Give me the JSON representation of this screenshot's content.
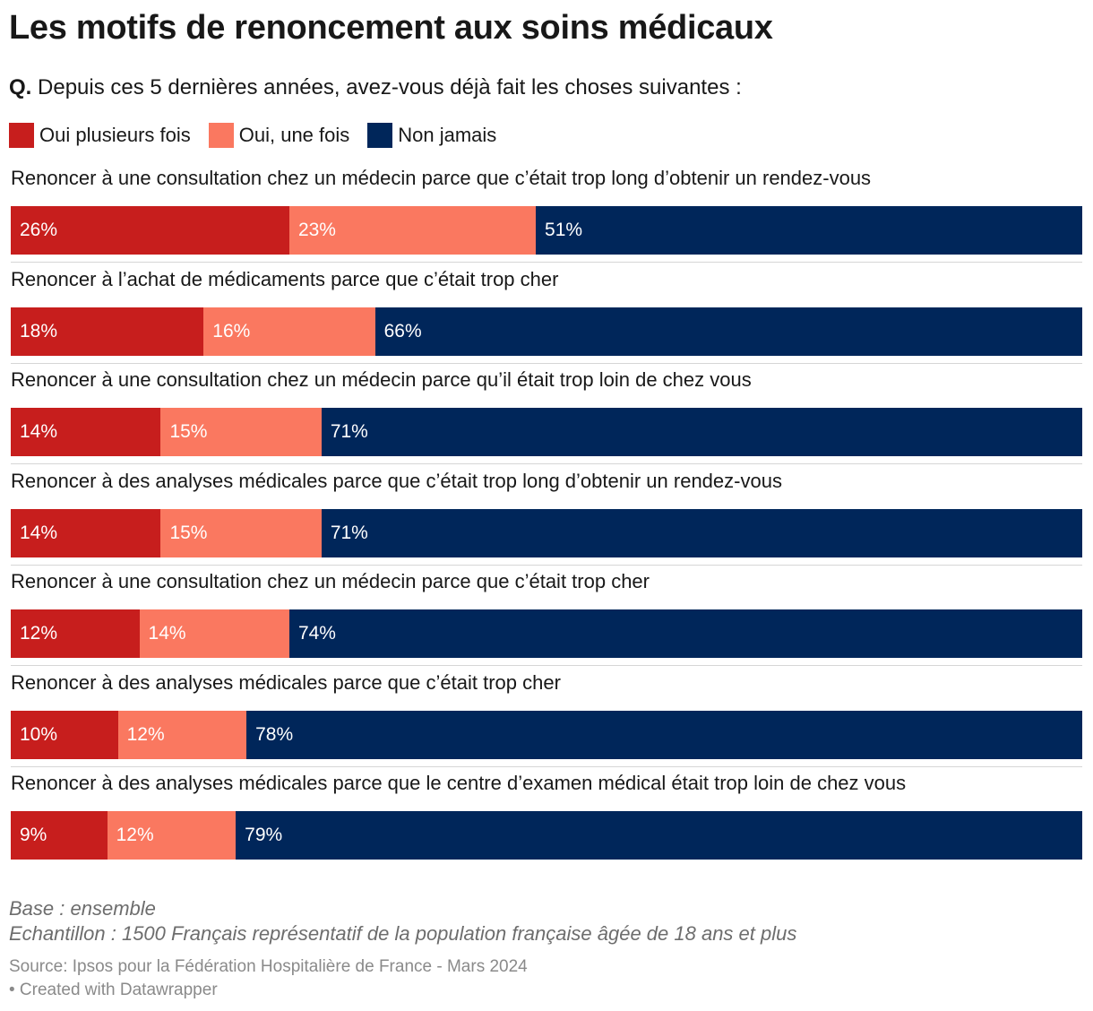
{
  "header": {
    "title": "Les motifs de renoncement aux soins médicaux",
    "subtitle_prefix": "Q.",
    "subtitle_text": "Depuis ces 5 dernières années, avez-vous déjà fait les choses suivantes :"
  },
  "colors": {
    "oui_plusieurs": "#c71e1d",
    "oui_une": "#fa7860",
    "non_jamais": "#00265a"
  },
  "chart_data": {
    "type": "bar",
    "orientation": "horizontal",
    "stacked": true,
    "unit": "%",
    "xlim": [
      0,
      100
    ],
    "legend_position": "top-left",
    "grid": false,
    "categories": [
      "Renoncer à une consultation chez un médecin parce que c’était trop long d’obtenir un rendez-vous",
      "Renoncer à l’achat de médicaments parce que c’était trop cher",
      "Renoncer à une consultation chez un médecin parce qu’il était trop loin de chez vous",
      "Renoncer à des analyses médicales parce que c’était trop long d’obtenir un rendez-vous",
      "Renoncer à une consultation chez un médecin parce que c’était trop cher",
      "Renoncer à des analyses médicales parce que c’était trop cher",
      "Renoncer à des analyses médicales parce que le centre d’examen médical était trop loin de chez vous"
    ],
    "series": [
      {
        "name": "Oui plusieurs fois",
        "color": "#c71e1d",
        "values": [
          26,
          18,
          14,
          14,
          12,
          10,
          9
        ]
      },
      {
        "name": "Oui, une fois",
        "color": "#fa7860",
        "values": [
          23,
          16,
          15,
          15,
          14,
          12,
          12
        ]
      },
      {
        "name": "Non jamais",
        "color": "#00265a",
        "values": [
          51,
          66,
          71,
          71,
          74,
          78,
          79
        ]
      }
    ]
  },
  "footer": {
    "note_base": "Base : ensemble",
    "note_sample": "Echantillon : 1500 Français représentatif de la population française âgée de 18 ans et plus",
    "source": "Source: Ipsos pour la Fédération Hospitalière de France - Mars 2024",
    "credit": "• Created with Datawrapper"
  }
}
